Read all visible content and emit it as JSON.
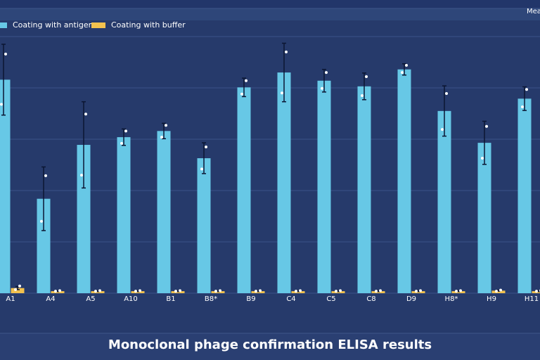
{
  "chart_data": {
    "type": "bar",
    "title": "Monoclonal phage confirmation ELISA results",
    "note": "Mea",
    "categories": [
      "A1",
      "A4",
      "A5",
      "A10",
      "B1",
      "B8*",
      "B9",
      "C4",
      "C5",
      "C8",
      "D9",
      "H8*",
      "H9",
      "H11"
    ],
    "ylim": [
      0,
      5
    ],
    "grid": true,
    "series": [
      {
        "name": "Coating with antigen",
        "color": "#67c8e6",
        "values": [
          4.16,
          1.84,
          2.89,
          3.04,
          3.16,
          2.63,
          4.01,
          4.3,
          4.14,
          4.03,
          4.36,
          3.55,
          2.93,
          3.79
        ],
        "errors": [
          0.69,
          0.62,
          0.84,
          0.16,
          0.15,
          0.3,
          0.18,
          0.57,
          0.22,
          0.26,
          0.11,
          0.49,
          0.42,
          0.23
        ],
        "points": [
          [
            4.66,
            3.68
          ],
          [
            2.29,
            1.4
          ],
          [
            3.49,
            2.3
          ],
          [
            3.16,
            2.92
          ],
          [
            3.27,
            3.04
          ],
          [
            2.85,
            2.42
          ],
          [
            4.14,
            3.88
          ],
          [
            4.7,
            3.9
          ],
          [
            4.3,
            3.99
          ],
          [
            4.22,
            3.85
          ],
          [
            4.44,
            4.3
          ],
          [
            3.89,
            3.19
          ],
          [
            3.25,
            2.63
          ],
          [
            3.97,
            3.63
          ]
        ]
      },
      {
        "name": "Coating with buffer",
        "color": "#f2c14e",
        "values": [
          0.1,
          0.04,
          0.04,
          0.04,
          0.04,
          0.04,
          0.04,
          0.04,
          0.04,
          0.04,
          0.04,
          0.04,
          0.05,
          0.04
        ],
        "errors": [
          0.03,
          0.01,
          0.01,
          0.01,
          0.01,
          0.01,
          0.01,
          0.01,
          0.01,
          0.01,
          0.01,
          0.01,
          0.01,
          0.01
        ],
        "points": [
          [
            0.14,
            0.07
          ],
          [
            0.05,
            0.04
          ],
          [
            0.05,
            0.04
          ],
          [
            0.05,
            0.04
          ],
          [
            0.05,
            0.04
          ],
          [
            0.05,
            0.04
          ],
          [
            0.05,
            0.04
          ],
          [
            0.05,
            0.04
          ],
          [
            0.05,
            0.04
          ],
          [
            0.05,
            0.04
          ],
          [
            0.05,
            0.04
          ],
          [
            0.05,
            0.04
          ],
          [
            0.06,
            0.04
          ],
          [
            0.05,
            0.04
          ]
        ]
      }
    ]
  }
}
